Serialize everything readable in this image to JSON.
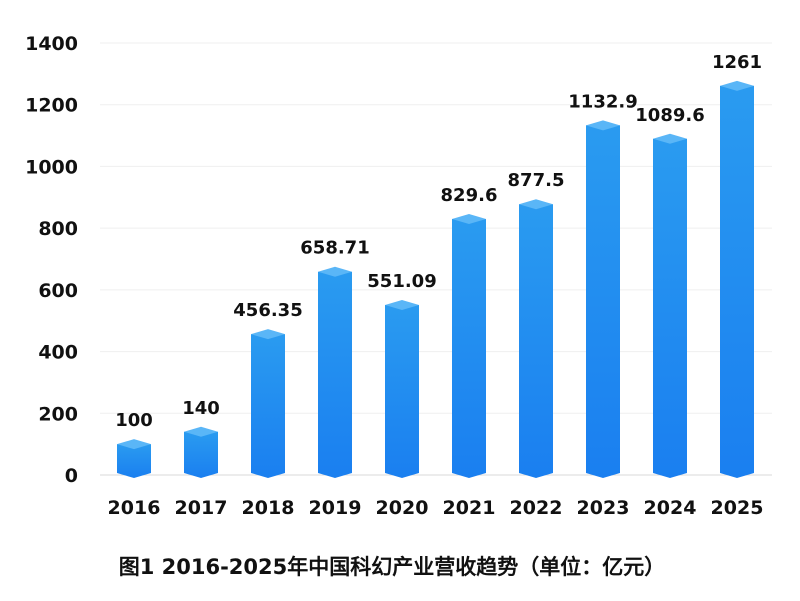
{
  "chart_data": {
    "type": "bar",
    "title": "图1 2016-2025年中国科幻产业营收趋势（单位：亿元）",
    "categories": [
      "2016",
      "2017",
      "2018",
      "2019",
      "2020",
      "2021",
      "2022",
      "2023",
      "2024",
      "2025"
    ],
    "values": [
      100,
      140,
      456.35,
      658.71,
      551.09,
      829.6,
      877.5,
      1132.9,
      1089.6,
      1261
    ],
    "data_labels": [
      "100",
      "140",
      "456.35",
      "658.71",
      "551.09",
      "829.6",
      "877.5",
      "1132.9",
      "1089.6",
      "1261"
    ],
    "ylim": [
      0,
      1400
    ],
    "yticks": [
      0,
      200,
      400,
      600,
      800,
      1000,
      1200,
      1400
    ],
    "grid": true,
    "bar_color_top": "#2a9bf0",
    "bar_color_bottom": "#1a7ff0",
    "bar_cap_color": "#5ab6f7"
  }
}
